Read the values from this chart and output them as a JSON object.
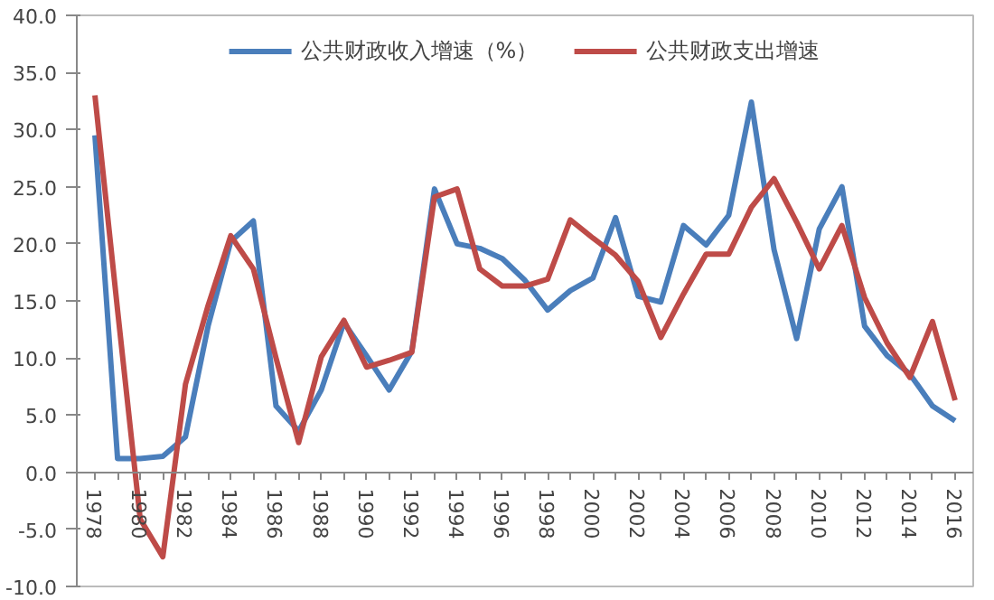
{
  "chart_data": {
    "type": "line",
    "categories": [
      "1978",
      null,
      "1980",
      null,
      "1982",
      null,
      "1984",
      null,
      "1986",
      null,
      "1988",
      null,
      "1990",
      null,
      "1992",
      null,
      "1994",
      null,
      "1996",
      null,
      "1998",
      null,
      "2000",
      null,
      "2002",
      null,
      "2004",
      null,
      "2006",
      null,
      "2008",
      null,
      "2010",
      null,
      "2012",
      null,
      "2014",
      null,
      "2016"
    ],
    "series": [
      {
        "name": "公共财政收入增速（%）",
        "color": "#4a7ebb",
        "values": [
          29.5,
          1.2,
          1.2,
          1.4,
          3.1,
          12.8,
          20.2,
          22.0,
          5.8,
          3.6,
          7.2,
          13.1,
          10.2,
          7.2,
          10.6,
          24.8,
          20.0,
          19.6,
          18.7,
          16.8,
          14.2,
          15.9,
          17.0,
          22.3,
          15.4,
          14.9,
          21.6,
          19.9,
          22.5,
          32.4,
          19.5,
          11.7,
          21.3,
          25.0,
          12.8,
          10.2,
          8.6,
          5.8,
          4.5
        ]
      },
      {
        "name": "公共财政支出增速",
        "color": "#be4b48",
        "values": [
          33.0,
          14.2,
          -4.1,
          -7.4,
          7.7,
          14.6,
          20.7,
          17.8,
          10.0,
          2.6,
          10.1,
          13.3,
          9.2,
          9.8,
          10.5,
          24.1,
          24.8,
          17.8,
          16.3,
          16.3,
          16.9,
          22.1,
          20.5,
          19.0,
          16.7,
          11.8,
          15.6,
          19.1,
          19.1,
          23.2,
          25.7,
          21.9,
          17.8,
          21.6,
          15.3,
          11.3,
          8.3,
          13.2,
          6.3
        ]
      }
    ],
    "ylim": [
      -10,
      40
    ],
    "yticks": [
      {
        "value": -10,
        "label": "-10.0"
      },
      {
        "value": -5,
        "label": "-5.0"
      },
      {
        "value": 0,
        "label": "0.0"
      },
      {
        "value": 5,
        "label": "5.0"
      },
      {
        "value": 10,
        "label": "10.0"
      },
      {
        "value": 15,
        "label": "15.0"
      },
      {
        "value": 20,
        "label": "20.0"
      },
      {
        "value": 25,
        "label": "25.0"
      },
      {
        "value": 30,
        "label": "30.0"
      },
      {
        "value": 35,
        "label": "35.0"
      },
      {
        "value": 40,
        "label": "40.0"
      }
    ],
    "grid": false,
    "legend": "top",
    "marker": "none",
    "line_style": "solid"
  }
}
